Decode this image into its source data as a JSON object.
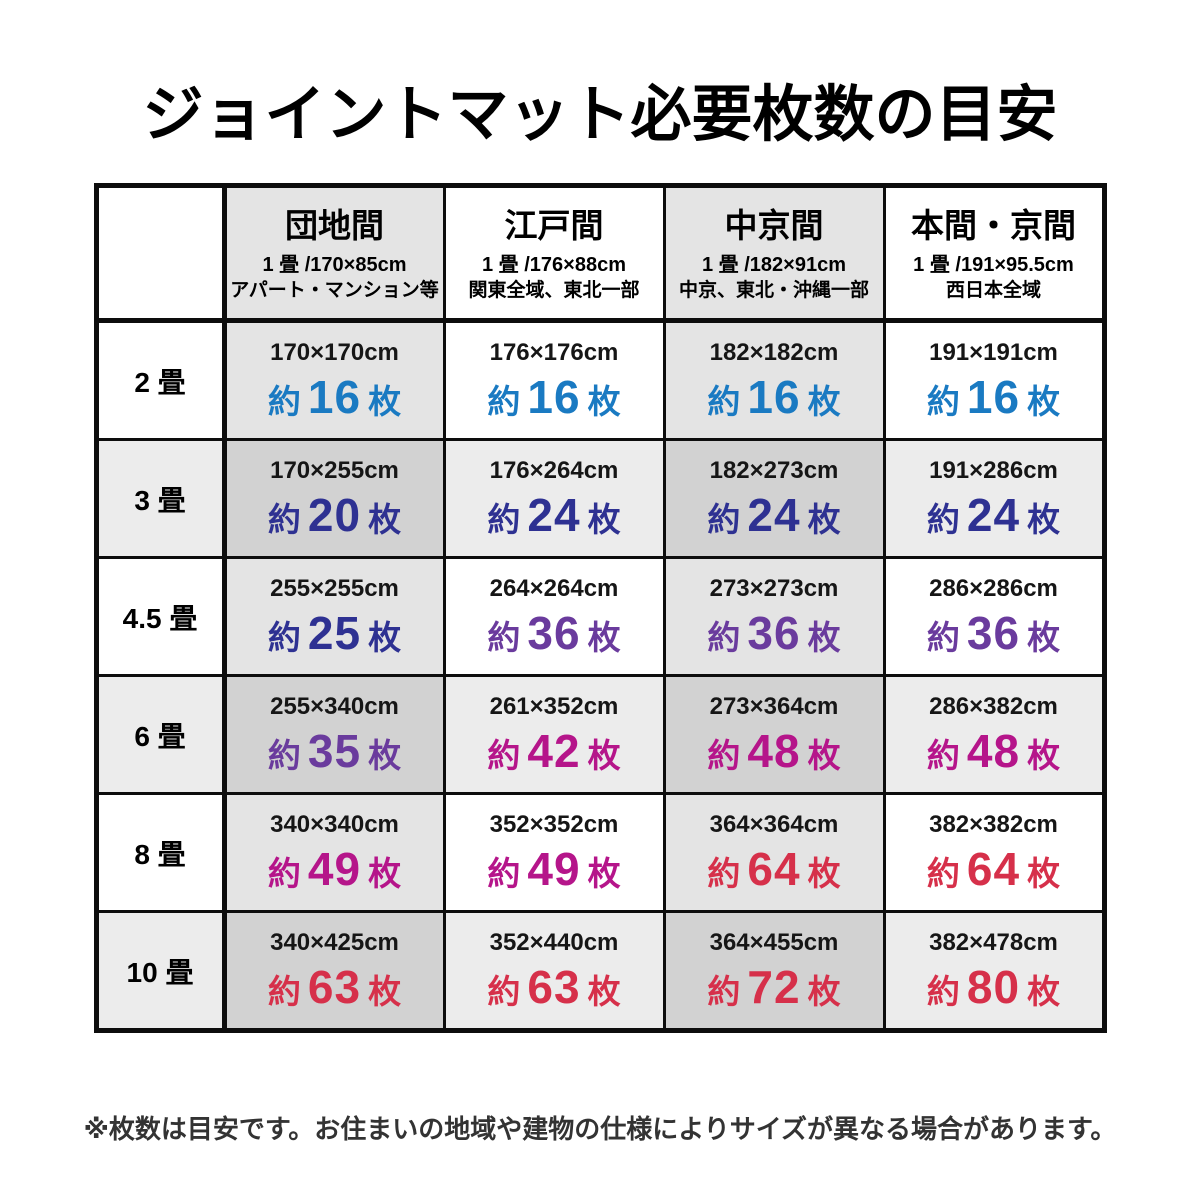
{
  "title": "ジョイントマット必要枚数の目安",
  "footnote": "※枚数は目安です。お住まいの地域や建物の仕様によりサイズが異なる場合があります。",
  "colors": {
    "blue": "#1a7ac2",
    "indigo": "#2e3192",
    "purple": "#6a3b9d",
    "magenta": "#b5158a",
    "red": "#d6304a"
  },
  "table": {
    "columns": [
      {
        "name": "団地間",
        "size": "1 畳 /170×85cm",
        "region": "アパート・マンション等",
        "shaded": true
      },
      {
        "name": "江戸間",
        "size": "1 畳 /176×88cm",
        "region": "関東全域、東北一部",
        "shaded": false
      },
      {
        "name": "中京間",
        "size": "1 畳 /182×91cm",
        "region": "中京、東北・沖縄一部",
        "shaded": true
      },
      {
        "name": "本間・京間",
        "size": "1 畳 /191×95.5cm",
        "region": "西日本全域",
        "shaded": false
      }
    ],
    "rows": [
      {
        "label": "2 畳",
        "shaded": false,
        "cells": [
          {
            "size": "170×170cm",
            "count": {
              "approx": "約",
              "value": "16",
              "unit": "枚"
            },
            "color": "blue"
          },
          {
            "size": "176×176cm",
            "count": {
              "approx": "約",
              "value": "16",
              "unit": "枚"
            },
            "color": "blue"
          },
          {
            "size": "182×182cm",
            "count": {
              "approx": "約",
              "value": "16",
              "unit": "枚"
            },
            "color": "blue"
          },
          {
            "size": "191×191cm",
            "count": {
              "approx": "約",
              "value": "16",
              "unit": "枚"
            },
            "color": "blue"
          }
        ]
      },
      {
        "label": "3 畳",
        "shaded": true,
        "cells": [
          {
            "size": "170×255cm",
            "count": {
              "approx": "約",
              "value": "20",
              "unit": "枚"
            },
            "color": "indigo"
          },
          {
            "size": "176×264cm",
            "count": {
              "approx": "約",
              "value": "24",
              "unit": "枚"
            },
            "color": "indigo"
          },
          {
            "size": "182×273cm",
            "count": {
              "approx": "約",
              "value": "24",
              "unit": "枚"
            },
            "color": "indigo"
          },
          {
            "size": "191×286cm",
            "count": {
              "approx": "約",
              "value": "24",
              "unit": "枚"
            },
            "color": "indigo"
          }
        ]
      },
      {
        "label": "4.5 畳",
        "shaded": false,
        "cells": [
          {
            "size": "255×255cm",
            "count": {
              "approx": "約",
              "value": "25",
              "unit": "枚"
            },
            "color": "indigo"
          },
          {
            "size": "264×264cm",
            "count": {
              "approx": "約",
              "value": "36",
              "unit": "枚"
            },
            "color": "purple"
          },
          {
            "size": "273×273cm",
            "count": {
              "approx": "約",
              "value": "36",
              "unit": "枚"
            },
            "color": "purple"
          },
          {
            "size": "286×286cm",
            "count": {
              "approx": "約",
              "value": "36",
              "unit": "枚"
            },
            "color": "purple"
          }
        ]
      },
      {
        "label": "6 畳",
        "shaded": true,
        "cells": [
          {
            "size": "255×340cm",
            "count": {
              "approx": "約",
              "value": "35",
              "unit": "枚"
            },
            "color": "purple"
          },
          {
            "size": "261×352cm",
            "count": {
              "approx": "約",
              "value": "42",
              "unit": "枚"
            },
            "color": "magenta"
          },
          {
            "size": "273×364cm",
            "count": {
              "approx": "約",
              "value": "48",
              "unit": "枚"
            },
            "color": "magenta"
          },
          {
            "size": "286×382cm",
            "count": {
              "approx": "約",
              "value": "48",
              "unit": "枚"
            },
            "color": "magenta"
          }
        ]
      },
      {
        "label": "8 畳",
        "shaded": false,
        "cells": [
          {
            "size": "340×340cm",
            "count": {
              "approx": "約",
              "value": "49",
              "unit": "枚"
            },
            "color": "magenta"
          },
          {
            "size": "352×352cm",
            "count": {
              "approx": "約",
              "value": "49",
              "unit": "枚"
            },
            "color": "magenta"
          },
          {
            "size": "364×364cm",
            "count": {
              "approx": "約",
              "value": "64",
              "unit": "枚"
            },
            "color": "red"
          },
          {
            "size": "382×382cm",
            "count": {
              "approx": "約",
              "value": "64",
              "unit": "枚"
            },
            "color": "red"
          }
        ]
      },
      {
        "label": "10 畳",
        "shaded": true,
        "cells": [
          {
            "size": "340×425cm",
            "count": {
              "approx": "約",
              "value": "63",
              "unit": "枚"
            },
            "color": "red"
          },
          {
            "size": "352×440cm",
            "count": {
              "approx": "約",
              "value": "63",
              "unit": "枚"
            },
            "color": "red"
          },
          {
            "size": "364×455cm",
            "count": {
              "approx": "約",
              "value": "72",
              "unit": "枚"
            },
            "color": "red"
          },
          {
            "size": "382×478cm",
            "count": {
              "approx": "約",
              "value": "80",
              "unit": "枚"
            },
            "color": "red"
          }
        ]
      }
    ]
  },
  "chart_data": {
    "type": "table",
    "title": "ジョイントマット必要枚数の目安",
    "columns": [
      "団地間",
      "江戸間",
      "中京間",
      "本間・京間"
    ],
    "column_tatami_sizes_cm": [
      "170×85",
      "176×88",
      "182×91",
      "191×95.5"
    ],
    "column_regions": [
      "アパート・マンション等",
      "関東全域、東北一部",
      "中京、東北・沖縄一部",
      "西日本全域"
    ],
    "rows": [
      "2畳",
      "3畳",
      "4.5畳",
      "6畳",
      "8畳",
      "10畳"
    ],
    "mat_counts": [
      [
        16,
        16,
        16,
        16
      ],
      [
        20,
        24,
        24,
        24
      ],
      [
        25,
        36,
        36,
        36
      ],
      [
        35,
        42,
        48,
        48
      ],
      [
        49,
        49,
        64,
        64
      ],
      [
        63,
        63,
        72,
        80
      ]
    ],
    "room_dimensions_cm": [
      [
        "170×170",
        "176×176",
        "182×182",
        "191×191"
      ],
      [
        "170×255",
        "176×264",
        "182×273",
        "191×286"
      ],
      [
        "255×255",
        "264×264",
        "273×273",
        "286×286"
      ],
      [
        "255×340",
        "261×352",
        "273×364",
        "286×382"
      ],
      [
        "340×340",
        "352×352",
        "364×364",
        "382×382"
      ],
      [
        "340×425",
        "352×440",
        "364×455",
        "382×478"
      ]
    ]
  }
}
